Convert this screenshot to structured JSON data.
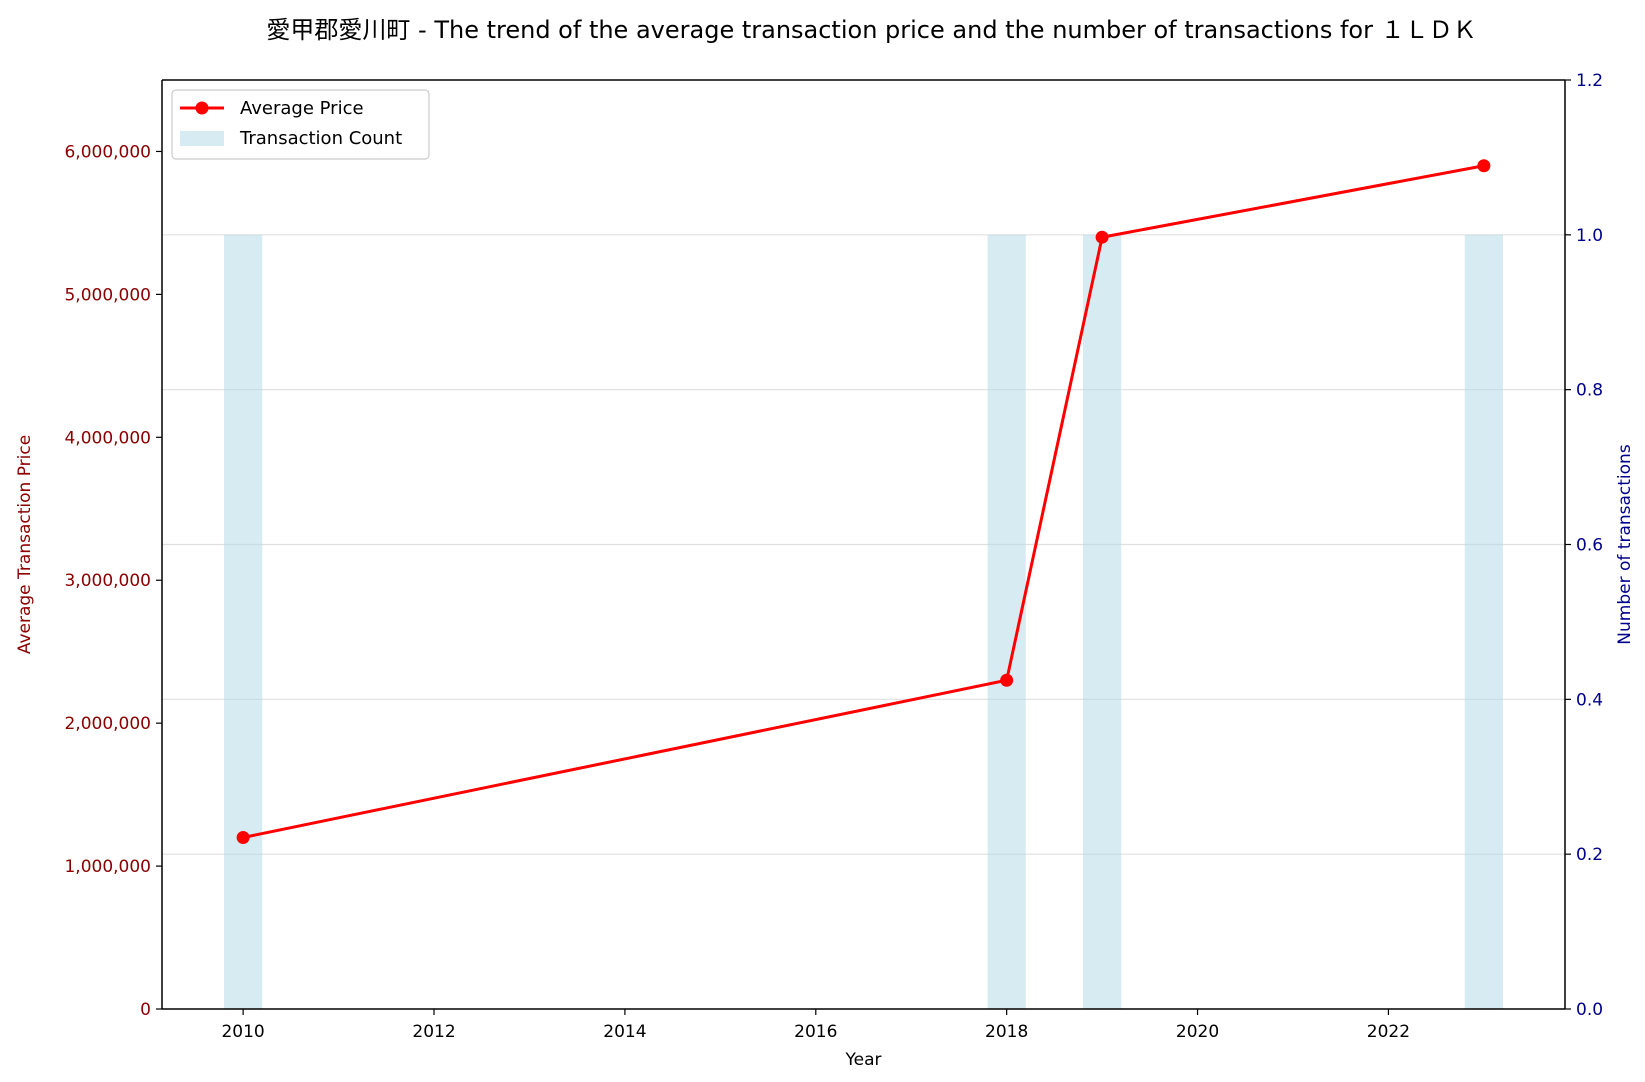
{
  "chart_data": {
    "type": "bar+line",
    "title": "愛甲郡愛川町 - The trend of the average transaction price and the number of transactions for １ＬＤＫ",
    "xlabel": "Year",
    "ylabel_left": "Average Transaction Price",
    "ylabel_right": "Number of transactions",
    "xlim": [
      2009.15,
      2023.85
    ],
    "xticks": [
      2010,
      2012,
      2014,
      2016,
      2018,
      2020,
      2022
    ],
    "ylim_left": [
      0,
      6500000
    ],
    "yticks_left": [
      0,
      1000000,
      2000000,
      3000000,
      4000000,
      5000000,
      6000000
    ],
    "ytick_labels_left": [
      "0",
      "1,000,000",
      "2,000,000",
      "3,000,000",
      "4,000,000",
      "5,000,000",
      "6,000,000"
    ],
    "ylim_right": [
      0,
      1.2
    ],
    "yticks_right": [
      0.0,
      0.2,
      0.4,
      0.6,
      0.8,
      1.0,
      1.2
    ],
    "ytick_labels_right": [
      "0.0",
      "0.2",
      "0.4",
      "0.6",
      "0.8",
      "1.0",
      "1.2"
    ],
    "grid": "horizontal (right axis)",
    "legend_position": "top-left",
    "series": [
      {
        "name": "Average Price",
        "kind": "line",
        "axis": "left",
        "color": "#ff0000",
        "x": [
          2010,
          2018,
          2019,
          2023
        ],
        "values": [
          1200000,
          2300000,
          5400000,
          5900000
        ]
      },
      {
        "name": "Transaction Count",
        "kind": "bar",
        "axis": "right",
        "color": "#add8e6",
        "x": [
          2010,
          2018,
          2019,
          2023
        ],
        "values": [
          1,
          1,
          1,
          1
        ]
      }
    ],
    "colors": {
      "left_axis": "#8b0000",
      "right_axis": "#00008b",
      "grid": "#e0e0e0"
    }
  }
}
